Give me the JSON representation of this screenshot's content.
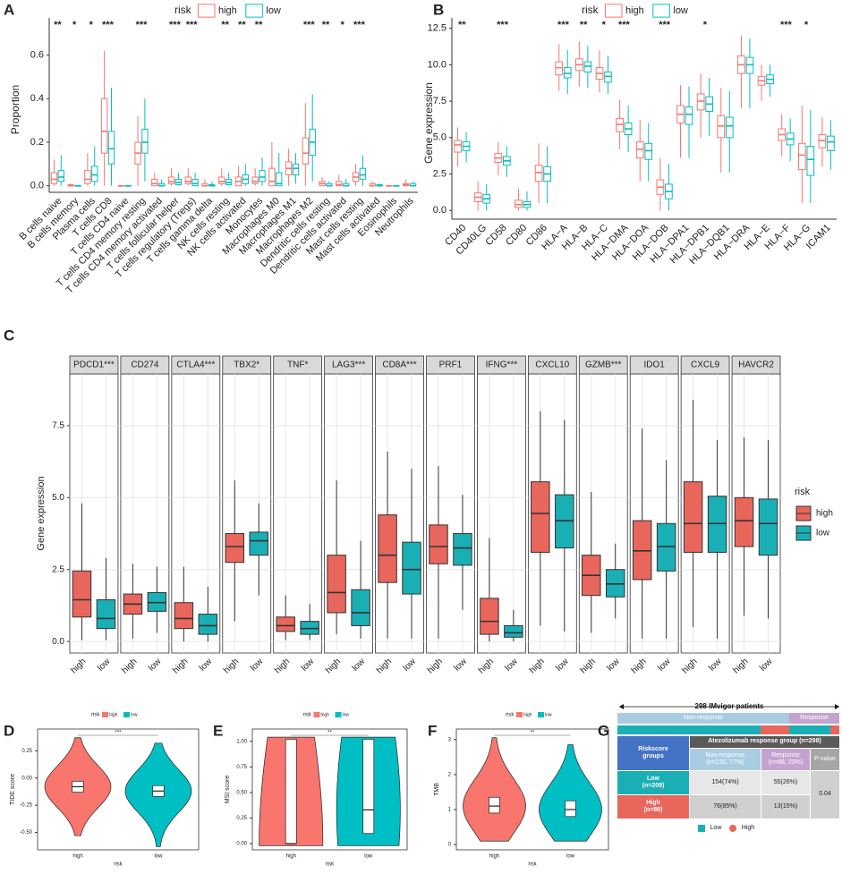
{
  "chart_data": [
    {
      "type": "box",
      "letter": "A",
      "ylabel": "Proportion",
      "legend_title": "risk",
      "filled": false,
      "categories": [
        "B cells naive",
        "B cells memory",
        "Plasma cells",
        "T cells CD8",
        "T cells CD4 naive",
        "T cells CD4 memory resting",
        "T cells CD4 memory activated",
        "T cells follicular helper",
        "T cells regulatory (Tregs)",
        "T cells gamma delta",
        "NK cells resting",
        "NK cells activated",
        "Monocytes",
        "Macrophages M0",
        "Macrophages M1",
        "Macrophages M2",
        "Dendritic cells resting",
        "Dendritic cells activated",
        "Mast cells resting",
        "Mast cells activated",
        "Eosinophils",
        "Neutrophils"
      ],
      "significance": [
        "**",
        "*",
        "*",
        "***",
        null,
        "***",
        null,
        "***",
        "***",
        null,
        "**",
        "**",
        "**",
        null,
        null,
        "***",
        "**",
        "*",
        "***",
        null,
        null,
        null
      ],
      "ylim": [
        -0.03,
        0.73
      ],
      "yticks": [
        {
          "value": 0,
          "label": "0.0"
        },
        0.2,
        0.4,
        0.6
      ],
      "series": [
        {
          "name": "high",
          "color": "#F8766D",
          "min": [
            0,
            0,
            0,
            0,
            0,
            0,
            0,
            0,
            0,
            0,
            0,
            0,
            0,
            0,
            0,
            0,
            0,
            0,
            0,
            0,
            0,
            0
          ],
          "q1": [
            0.01,
            0,
            0.01,
            0.15,
            0,
            0.1,
            0,
            0.01,
            0.01,
            0,
            0.01,
            0,
            0.01,
            0,
            0.05,
            0.1,
            0,
            0,
            0.02,
            0,
            0,
            0
          ],
          "median": [
            0.03,
            0,
            0.03,
            0.25,
            0,
            0.15,
            0.01,
            0.02,
            0.02,
            0,
            0.02,
            0.02,
            0.02,
            0.02,
            0.08,
            0.15,
            0.01,
            0.005,
            0.04,
            0,
            0,
            0.005
          ],
          "q3": [
            0.06,
            0.005,
            0.07,
            0.4,
            0,
            0.2,
            0.03,
            0.04,
            0.04,
            0.01,
            0.04,
            0.04,
            0.04,
            0.08,
            0.11,
            0.22,
            0.02,
            0.02,
            0.06,
            0.01,
            0,
            0.01
          ],
          "max": [
            0.12,
            0.01,
            0.15,
            0.62,
            0,
            0.32,
            0.06,
            0.08,
            0.08,
            0.03,
            0.08,
            0.09,
            0.08,
            0.2,
            0.17,
            0.38,
            0.04,
            0.05,
            0.1,
            0.02,
            0,
            0.03
          ]
        },
        {
          "name": "low",
          "color": "#00BFC4",
          "min": [
            0,
            0,
            0,
            0,
            0,
            0.02,
            0,
            0,
            0,
            0,
            0,
            0,
            0,
            0,
            0.01,
            0.02,
            0,
            0,
            0,
            0,
            0,
            0
          ],
          "q1": [
            0.02,
            0,
            0.02,
            0.1,
            0,
            0.15,
            0,
            0.005,
            0,
            0,
            0.005,
            0.01,
            0.02,
            0,
            0.05,
            0.14,
            0,
            0,
            0.03,
            0,
            0,
            0
          ],
          "median": [
            0.04,
            0,
            0.05,
            0.17,
            0,
            0.2,
            0,
            0.015,
            0.01,
            0,
            0.015,
            0.03,
            0.04,
            0.01,
            0.08,
            0.2,
            0,
            0,
            0.05,
            0,
            0,
            0
          ],
          "q3": [
            0.07,
            0,
            0.09,
            0.25,
            0,
            0.26,
            0.01,
            0.03,
            0.03,
            0.005,
            0.03,
            0.05,
            0.07,
            0.06,
            0.1,
            0.26,
            0.01,
            0.01,
            0.08,
            0.005,
            0,
            0.01
          ],
          "max": [
            0.14,
            0,
            0.18,
            0.45,
            0,
            0.4,
            0.03,
            0.06,
            0.06,
            0.02,
            0.06,
            0.1,
            0.13,
            0.15,
            0.15,
            0.42,
            0.02,
            0.03,
            0.14,
            0.01,
            0,
            0.02
          ]
        }
      ]
    },
    {
      "type": "box",
      "letter": "B",
      "ylabel": "Gene expression",
      "legend_title": "risk",
      "filled": false,
      "categories": [
        "CD40",
        "CD40LG",
        "CD58",
        "CD80",
        "CD86",
        "HLA−A",
        "HLA−B",
        "HLA−C",
        "HLA−DMA",
        "HLA−DOA",
        "HLA−DOB",
        "HLA−DPA1",
        "HLA−DPB1",
        "HLA−DQB1",
        "HLA−DRA",
        "HLA−E",
        "HLA−F",
        "HLA−G",
        "ICAM1"
      ],
      "significance": [
        "**",
        null,
        "***",
        null,
        null,
        "***",
        "**",
        "*",
        "***",
        null,
        "***",
        null,
        "*",
        null,
        null,
        null,
        "***",
        "*",
        null
      ],
      "ylim": [
        -0.6,
        12.6
      ],
      "yticks": [
        {
          "value": 0,
          "label": "0.0"
        },
        2.5,
        {
          "value": 5,
          "label": "5.0"
        },
        7.5,
        {
          "value": 10,
          "label": "10.0"
        },
        12.5
      ],
      "series": [
        {
          "name": "high",
          "color": "#F8766D",
          "min": [
            3,
            0,
            2.4,
            0,
            0.5,
            8.2,
            8.5,
            8.1,
            4.2,
            2,
            0,
            3.6,
            5,
            2.6,
            7,
            7.5,
            3.7,
            0.5,
            3
          ],
          "q1": [
            4,
            0.6,
            3.3,
            0.2,
            2,
            9.3,
            9.6,
            9,
            5.4,
            3.6,
            1.1,
            6,
            6.9,
            5,
            9.4,
            8.6,
            4.8,
            2.8,
            4.3
          ],
          "median": [
            4.5,
            0.9,
            3.6,
            0.4,
            2.6,
            9.8,
            10,
            9.4,
            5.9,
            4.2,
            1.6,
            6.6,
            7.5,
            5.8,
            10,
            8.9,
            5.2,
            3.8,
            4.8
          ],
          "q3": [
            4.8,
            1.2,
            3.9,
            0.7,
            3.1,
            10.2,
            10.4,
            9.8,
            6.3,
            4.7,
            2.1,
            7.2,
            8,
            6.5,
            10.6,
            9.2,
            5.6,
            4.6,
            5.2
          ],
          "max": [
            5.7,
            2,
            4.7,
            1.5,
            4.6,
            11.4,
            11.6,
            11,
            7.6,
            6.2,
            3.6,
            8.6,
            9.4,
            8.4,
            12,
            10,
            6.6,
            7.2,
            6.4
          ]
        },
        {
          "name": "low",
          "color": "#00BFC4",
          "min": [
            3.3,
            0,
            2.3,
            0,
            0.5,
            8,
            8.4,
            8,
            4,
            2,
            0,
            3.6,
            5.1,
            2.6,
            7,
            7.8,
            3.4,
            0.5,
            2.8
          ],
          "q1": [
            4.1,
            0.5,
            3.1,
            0.2,
            2,
            9.1,
            9.5,
            8.8,
            5.2,
            3.5,
            0.8,
            5.9,
            6.8,
            5,
            9.4,
            8.7,
            4.5,
            2.4,
            4.1
          ],
          "median": [
            4.4,
            0.8,
            3.4,
            0.4,
            2.5,
            9.4,
            9.9,
            9.2,
            5.6,
            4.1,
            1.3,
            6.6,
            7.3,
            5.8,
            10,
            9,
            4.9,
            3.5,
            4.7
          ],
          "q3": [
            4.7,
            1.1,
            3.7,
            0.6,
            3,
            9.8,
            10.2,
            9.5,
            6,
            4.6,
            1.8,
            7.1,
            7.8,
            6.4,
            10.5,
            9.3,
            5.3,
            4.4,
            5.1
          ],
          "max": [
            5.4,
            1.8,
            4.4,
            1.3,
            4.4,
            11,
            11.3,
            10.6,
            7.2,
            6,
            3.2,
            8.5,
            9.1,
            8.2,
            11.8,
            10,
            6.3,
            6.9,
            6.2
          ]
        }
      ]
    },
    {
      "type": "facet_box",
      "letter": "C",
      "ylabel": "Gene expression",
      "legend_title": "risk",
      "filled": true,
      "categories": [
        "PDCD1***",
        "CD274",
        "CTLA4***",
        "TBX2*",
        "TNF*",
        "LAG3***",
        "CD8A***",
        "PRF1",
        "IFNG***",
        "CXCL10",
        "GZMB***",
        "IDO1",
        "CXCL9",
        "HAVCR2"
      ],
      "ylim": [
        -0.4,
        9.3
      ],
      "yticks": [
        {
          "value": 0,
          "label": "0.0"
        },
        2.5,
        {
          "value": 5,
          "label": "5.0"
        },
        7.5
      ],
      "series": [
        {
          "name": "high",
          "color": "#E8665C",
          "min": [
            0.05,
            0.1,
            0,
            0.7,
            0.05,
            0.25,
            0.1,
            0.1,
            0,
            0.55,
            0.3,
            0.1,
            0.5,
            0.9
          ],
          "q1": [
            0.85,
            0.95,
            0.45,
            2.75,
            0.35,
            1,
            2.05,
            2.7,
            0.25,
            3.1,
            1.6,
            2.15,
            3.1,
            3.3
          ],
          "median": [
            1.45,
            1.3,
            0.8,
            3.3,
            0.55,
            1.7,
            3,
            3.3,
            0.7,
            4.45,
            2.3,
            3.15,
            4.1,
            4.2
          ],
          "q3": [
            2.45,
            1.65,
            1.35,
            3.75,
            0.85,
            3,
            4.4,
            4.05,
            1.5,
            5.55,
            3,
            4.2,
            5.55,
            5
          ],
          "max": [
            4.8,
            2.7,
            2.6,
            5.6,
            1.6,
            5.6,
            6.6,
            6.1,
            3.6,
            8,
            5.2,
            7.4,
            8.4,
            7.1
          ]
        },
        {
          "name": "low",
          "color": "#1AAFB4",
          "min": [
            0.05,
            0.3,
            0,
            1.6,
            0.05,
            0.1,
            0.1,
            1.1,
            0,
            0.35,
            0.8,
            0.1,
            0.1,
            0.8
          ],
          "q1": [
            0.45,
            1.05,
            0.25,
            3,
            0.25,
            0.55,
            1.65,
            2.65,
            0.15,
            3.25,
            1.55,
            2.45,
            3.1,
            3
          ],
          "median": [
            0.8,
            1.35,
            0.55,
            3.5,
            0.45,
            1,
            2.5,
            3.25,
            0.3,
            4.2,
            2,
            3.3,
            4.1,
            4.1
          ],
          "q3": [
            1.45,
            1.7,
            0.95,
            3.8,
            0.7,
            1.8,
            3.45,
            3.75,
            0.55,
            5.1,
            2.5,
            4.1,
            5.05,
            4.95
          ],
          "max": [
            2.9,
            2.6,
            1.9,
            4.8,
            1.3,
            3.5,
            6,
            5.1,
            1.1,
            7.7,
            3.4,
            6.3,
            7,
            7
          ]
        }
      ]
    },
    {
      "type": "violin",
      "letter": "D",
      "ylabel": "TIDE score",
      "xlabel": "risk",
      "legend_title": "risk",
      "significance": "***",
      "ylim": [
        -0.66,
        0.45
      ],
      "yticks": [
        {
          "value": -0.5,
          "label": "-0.50"
        },
        {
          "value": -0.25,
          "label": "-0.25"
        },
        {
          "value": 0,
          "label": "0.00"
        },
        {
          "value": 0.25,
          "label": "0.25"
        }
      ],
      "series": [
        {
          "name": "high",
          "color": "#F8766D",
          "min": -0.53,
          "q1": -0.13,
          "median": -0.08,
          "q3": -0.03,
          "max": 0.37
        },
        {
          "name": "low",
          "color": "#00BFC4",
          "min": -0.63,
          "q1": -0.17,
          "median": -0.12,
          "q3": -0.07,
          "max": 0.32
        }
      ]
    },
    {
      "type": "violin",
      "letter": "E",
      "ylabel": "MSI score",
      "xlabel": "risk",
      "legend_title": "risk",
      "significance": "**",
      "ylim": [
        -0.06,
        1.12
      ],
      "yticks": [
        {
          "value": 0,
          "label": "0.00"
        },
        {
          "value": 0.25,
          "label": "0.25"
        },
        {
          "value": 0.5,
          "label": "0.50"
        },
        {
          "value": 0.75,
          "label": "0.75"
        },
        {
          "value": 1,
          "label": "1.00"
        }
      ],
      "series": [
        {
          "name": "high",
          "color": "#F8766D",
          "min": -0.02,
          "q1": 0,
          "median": 0,
          "q3": 1.02,
          "max": 1.04
        },
        {
          "name": "low",
          "color": "#00BFC4",
          "min": -0.02,
          "q1": 0.1,
          "median": 0.33,
          "q3": 1.02,
          "max": 1.04
        }
      ]
    },
    {
      "type": "violin",
      "letter": "F",
      "ylabel": "TMB",
      "xlabel": "risk",
      "legend_title": "risk",
      "significance": "**",
      "ylim": [
        -0.15,
        3.3
      ],
      "yticks": [
        0,
        1,
        2,
        3
      ],
      "series": [
        {
          "name": "high",
          "color": "#F8766D",
          "min": 0.1,
          "q1": 0.9,
          "median": 1.1,
          "q3": 1.35,
          "max": 3.05
        },
        {
          "name": "low",
          "color": "#00BFC4",
          "min": 0.1,
          "q1": 0.8,
          "median": 1,
          "q3": 1.25,
          "max": 2.85
        }
      ]
    }
  ],
  "table_g": {
    "letter": "G",
    "title": "298 IMvigor patients",
    "top_bar": [
      "Non-response",
      "Response"
    ],
    "group_header": "Riskscore\ngroups",
    "span_header": "Atezolizumab response group (n=298)",
    "columns": [
      "Non-response\n(n=230, 77%)",
      "Response\n(n=68, 23%)",
      "P-value"
    ],
    "rows": [
      {
        "label": "Low\n(n=209)",
        "cells": [
          "154(74%)",
          "55(26%)"
        ]
      },
      {
        "label": "High\n(n=89)",
        "cells": [
          "76(85%)",
          "13(15%)"
        ]
      }
    ],
    "p_value": "0.04",
    "legend": [
      "Low",
      "High"
    ]
  }
}
